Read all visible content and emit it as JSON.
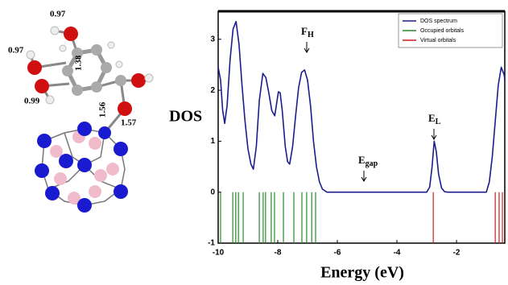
{
  "molecule": {
    "labels": [
      "0.97",
      "0.97",
      "1.38",
      "0.99",
      "1.56",
      "1.57"
    ]
  },
  "chart_data": {
    "type": "line",
    "ylabel": "DOS",
    "xlabel": "Energy (eV)",
    "xlim": [
      -10,
      -0.38
    ],
    "ylim": [
      -1,
      3.55
    ],
    "xticks": [
      -10,
      -8,
      -6,
      -4,
      -2
    ],
    "yticks": [
      -1,
      0,
      1,
      2,
      3
    ],
    "legend": "upper right",
    "series": [
      {
        "name": "DOS spectrum",
        "color": "#1c1c8c",
        "x": [
          -10,
          -9.92,
          -9.85,
          -9.78,
          -9.7,
          -9.6,
          -9.5,
          -9.4,
          -9.3,
          -9.2,
          -9.1,
          -9.0,
          -8.9,
          -8.82,
          -8.72,
          -8.62,
          -8.5,
          -8.4,
          -8.3,
          -8.2,
          -8.1,
          -8.05,
          -7.98,
          -7.92,
          -7.85,
          -7.75,
          -7.67,
          -7.6,
          -7.5,
          -7.4,
          -7.3,
          -7.2,
          -7.1,
          -7.0,
          -6.9,
          -6.8,
          -6.7,
          -6.6,
          -6.5,
          -6.35,
          -3.0,
          -2.9,
          -2.82,
          -2.75,
          -2.68,
          -2.6,
          -2.5,
          -2.4,
          -2.3,
          -1.0,
          -0.9,
          -0.8,
          -0.7,
          -0.6,
          -0.5,
          -0.4,
          -0.38
        ],
        "values": [
          2.45,
          2.2,
          1.6,
          1.35,
          1.7,
          2.6,
          3.2,
          3.35,
          2.9,
          2.1,
          1.4,
          0.85,
          0.55,
          0.45,
          0.9,
          1.8,
          2.33,
          2.25,
          1.95,
          1.6,
          1.5,
          1.7,
          1.97,
          1.95,
          1.6,
          0.9,
          0.6,
          0.55,
          0.9,
          1.5,
          2.05,
          2.35,
          2.4,
          2.2,
          1.7,
          1.0,
          0.5,
          0.2,
          0.06,
          0,
          0,
          0.1,
          0.5,
          1.0,
          0.8,
          0.35,
          0.08,
          0.01,
          0,
          0,
          0.2,
          0.7,
          1.4,
          2.1,
          2.45,
          2.3,
          2.2
        ]
      }
    ],
    "sticks": [
      {
        "name": "Occupied orbitals",
        "color": "#2a8a2a",
        "x": [
          -9.92,
          -9.51,
          -9.41,
          -9.32,
          -9.16,
          -8.62,
          -8.49,
          -8.41,
          -8.22,
          -8.11,
          -7.81,
          -7.46,
          -7.19,
          -7.03,
          -6.86,
          -6.73
        ]
      },
      {
        "name": "Virtual orbitals",
        "color": "#cc1f1f",
        "x": [
          -2.78,
          -0.7,
          -0.57,
          -0.46
        ]
      }
    ],
    "annotations": [
      {
        "text": "F",
        "sub": "H"
      },
      {
        "text": "E",
        "sub": "gap"
      },
      {
        "text": "E",
        "sub": "L"
      }
    ]
  }
}
